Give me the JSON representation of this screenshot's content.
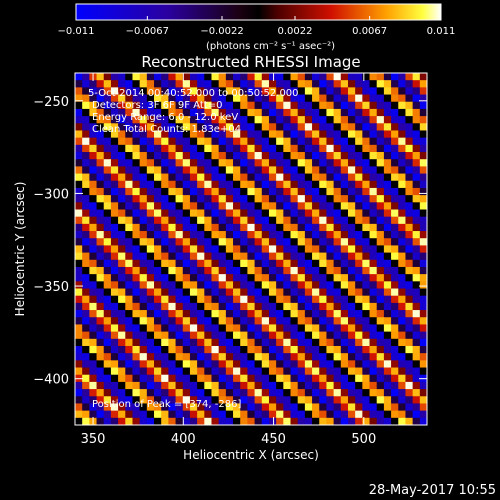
{
  "chart_data": {
    "type": "heatmap",
    "title": "Reconstructed RHESSI Image",
    "xlabel": "Heliocentric X (arcsec)",
    "ylabel": "Heliocentric Y (arcsec)",
    "xlim": [
      340,
      535
    ],
    "ylim": [
      -425,
      -235
    ],
    "x_ticks": [
      350,
      400,
      450,
      500
    ],
    "y_ticks": [
      -250,
      -300,
      -350,
      -400
    ],
    "colorbar": {
      "range": [
        -0.011,
        0.011
      ],
      "tick_values": [
        -0.011,
        -0.0067,
        -0.0022,
        0.0022,
        0.0067,
        0.011
      ],
      "tick_labels": [
        "−0.011",
        "−0.0067",
        "−0.0022",
        "0.0022",
        "0.0067",
        "0.011"
      ],
      "unit_label": "(photons cm⁻² s⁻¹ asec⁻²)"
    },
    "pattern": {
      "description": "diagonal fringe pattern",
      "cells_x": 49,
      "cells_y": 49,
      "fringe_period_cells": 5.5
    },
    "annotations": [
      "5-Oct-2014 00:40:52.000 to 00:50:52.000",
      "Detectors: 3F 6F 9F Att=0",
      "Energy Range: 6.0 - 12.0 keV",
      "Clean   Total Counts: 1.83e+04",
      "Position of Peak = [374, -286]"
    ]
  },
  "footer": {
    "timestamp": "28-May-2017 10:55"
  }
}
